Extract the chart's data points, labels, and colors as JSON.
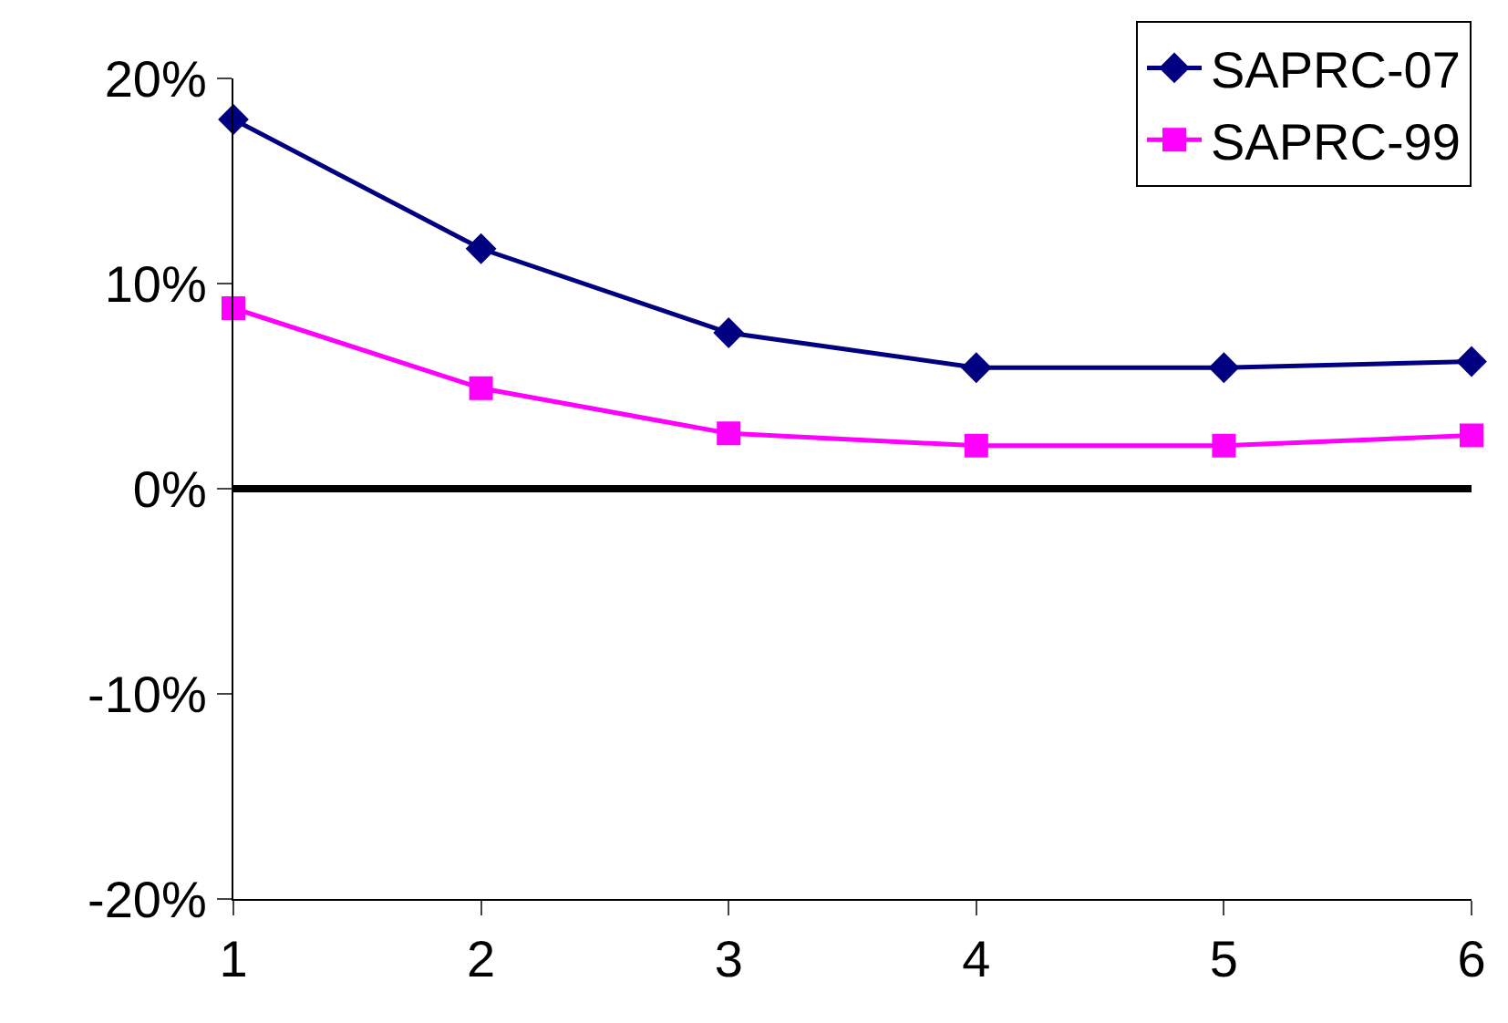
{
  "chart_data": {
    "type": "line",
    "x": [
      1,
      2,
      3,
      4,
      5,
      6
    ],
    "series": [
      {
        "name": "SAPRC-07",
        "color": "#000080",
        "marker": "diamond",
        "values": [
          18.0,
          11.7,
          7.6,
          5.9,
          5.9,
          6.2
        ]
      },
      {
        "name": "SAPRC-99",
        "color": "#ff00ff",
        "marker": "square",
        "values": [
          8.8,
          4.9,
          2.7,
          2.1,
          2.1,
          2.6
        ]
      }
    ],
    "xlim": [
      1,
      6
    ],
    "xticks": [
      1,
      2,
      3,
      4,
      5,
      6
    ],
    "ylim": [
      -20,
      20
    ],
    "yticks": [
      {
        "value": -20,
        "label": "-20%"
      },
      {
        "value": -10,
        "label": "-10%"
      },
      {
        "value": 0,
        "label": "0%"
      },
      {
        "value": 10,
        "label": "10%"
      },
      {
        "value": 20,
        "label": "20%"
      }
    ],
    "ref_lines": [
      {
        "axis": "y",
        "value": 0,
        "color": "#000000"
      }
    ],
    "grid": false,
    "legend": "top right",
    "line_style": "solid"
  }
}
